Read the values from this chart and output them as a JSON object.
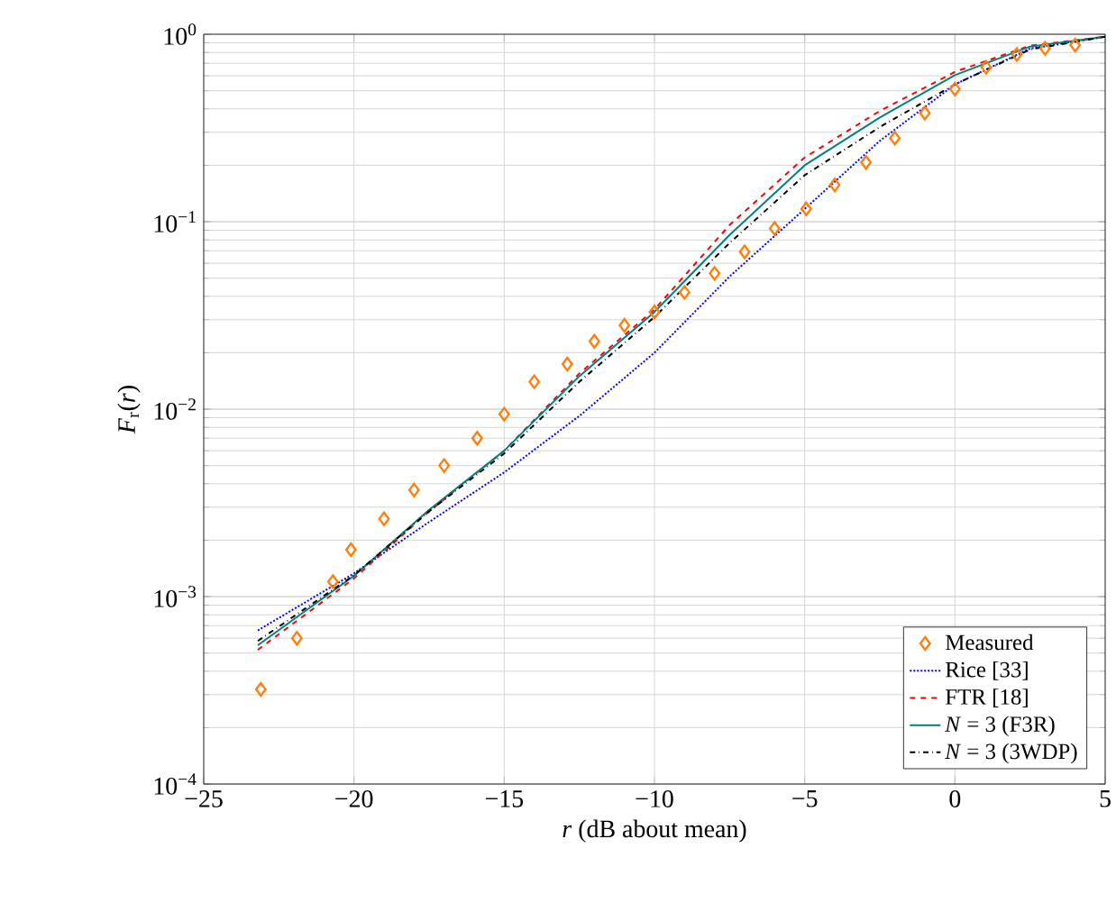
{
  "chart_data": {
    "type": "line",
    "xlabel": "*r* (dB about mean)",
    "ylabel": "*F*$_{r}$(*r*)",
    "log": "y",
    "grid": true,
    "legend": "bottom right",
    "xlim": [
      -25,
      5
    ],
    "ylim": [
      0.0001,
      1
    ],
    "xticks": [
      {
        "value": -25,
        "label": "−25"
      },
      {
        "value": -20,
        "label": "−20"
      },
      {
        "value": -15,
        "label": "−15"
      },
      {
        "value": -10,
        "label": "−10"
      },
      {
        "value": -5,
        "label": "−5"
      },
      0,
      5
    ],
    "yticks": [
      {
        "value": 0.0001,
        "label": "10$^{−4}$"
      },
      {
        "value": 0.001,
        "label": "10$^{−3}$"
      },
      {
        "value": 0.01,
        "label": "10$^{−2}$"
      },
      {
        "value": 0.1,
        "label": "10$^{−1}$"
      },
      {
        "value": 1,
        "label": "10$^{0}$"
      }
    ],
    "series": [
      {
        "name": "Measured",
        "type": "scatter",
        "marker": "diamond",
        "color": "#ff7f0e",
        "x": [
          -23.1,
          -21.9,
          -20.7,
          -20.1,
          -19.0,
          -18.0,
          -17.0,
          -15.9,
          -15.0,
          -14.0,
          -12.9,
          -12.0,
          -11.0,
          -10.0,
          -9.0,
          -8.0,
          -7.0,
          -6.0,
          -4.95,
          -4.0,
          -2.96,
          -2.0,
          -1.0,
          0.0,
          1.04,
          2.06,
          3.0,
          4.0
        ],
        "values": [
          0.00032,
          0.0006,
          0.0012,
          0.00178,
          0.0026,
          0.0037,
          0.005,
          0.007,
          0.0094,
          0.014,
          0.0174,
          0.023,
          0.028,
          0.033,
          0.042,
          0.053,
          0.069,
          0.092,
          0.117,
          0.157,
          0.207,
          0.279,
          0.38,
          0.51,
          0.667,
          0.78,
          0.84,
          0.875
        ]
      },
      {
        "name": "Rice [33]",
        "line_style": "dotted",
        "color": "#0000ff",
        "x": [
          -23.2,
          -20,
          -17.5,
          -15,
          -12.5,
          -10,
          -7.5,
          -5,
          -2.5,
          0,
          2.5,
          5
        ],
        "values": [
          0.00066,
          0.00133,
          0.0025,
          0.0046,
          0.0092,
          0.02,
          0.051,
          0.117,
          0.27,
          0.54,
          0.84,
          0.97
        ]
      },
      {
        "name": "FTR [18]",
        "line_style": "dashed",
        "color": "#ff0000",
        "x": [
          -23.2,
          -20,
          -17.5,
          -15,
          -12.5,
          -10,
          -7.5,
          -5,
          -2.5,
          0,
          2.5,
          5
        ],
        "values": [
          0.00052,
          0.00125,
          0.00285,
          0.006,
          0.0155,
          0.034,
          0.096,
          0.22,
          0.39,
          0.63,
          0.87,
          0.97
        ]
      },
      {
        "name": "*N* = 3 (F3R)",
        "line_style": "solid",
        "color": "#008080",
        "x": [
          -23.2,
          -20,
          -17.5,
          -15,
          -12.5,
          -10,
          -7.5,
          -5,
          -2.5,
          0,
          2.5,
          5
        ],
        "values": [
          0.00055,
          0.00129,
          0.0029,
          0.006,
          0.015,
          0.033,
          0.085,
          0.2,
          0.36,
          0.605,
          0.86,
          0.97
        ]
      },
      {
        "name": "*N* = 3 (3WDP)",
        "line_style": "dashdot",
        "color": "#000000",
        "x": [
          -23.2,
          -20,
          -17.5,
          -15,
          -12.5,
          -10,
          -7.5,
          -5,
          -2.5,
          0,
          2.5,
          5
        ],
        "values": [
          0.00058,
          0.0013,
          0.00285,
          0.0058,
          0.014,
          0.031,
          0.077,
          0.177,
          0.32,
          0.54,
          0.83,
          0.97
        ]
      }
    ]
  }
}
